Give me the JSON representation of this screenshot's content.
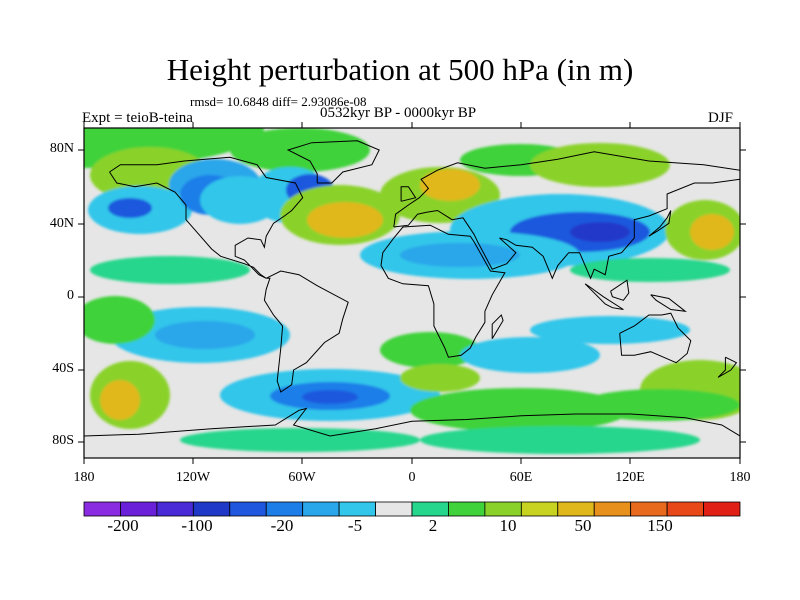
{
  "title": "Height perturbation at 500 hPa (in m)",
  "stats": "rmsd= 10.6848 diff= 2.93086e-08",
  "experiment": "Expt = teioB-teina",
  "period": "0532kyr BP - 0000kyr BP",
  "season": "DJF",
  "y_ticks": [
    "80N",
    "40N",
    "0",
    "40S",
    "80S"
  ],
  "x_ticks": [
    "180",
    "120W",
    "60W",
    "0",
    "60E",
    "120E",
    "180"
  ],
  "colorbar": {
    "colors": [
      "#8a2be2",
      "#6a1fd8",
      "#4a2ad6",
      "#2038c8",
      "#1f58de",
      "#1e7ee8",
      "#2aa6ea",
      "#31c6ea",
      "#e6e6e6",
      "#25d68c",
      "#3fd23a",
      "#8ad22a",
      "#c8d220",
      "#e0b81c",
      "#e8901c",
      "#e86a1c",
      "#e84818",
      "#e02016"
    ],
    "labels": [
      "-200",
      "-100",
      "-20",
      "-5",
      "2",
      "10",
      "50",
      "150"
    ]
  },
  "colors": {
    "background_zero": "#e6e6e6",
    "coast": "#000000"
  }
}
